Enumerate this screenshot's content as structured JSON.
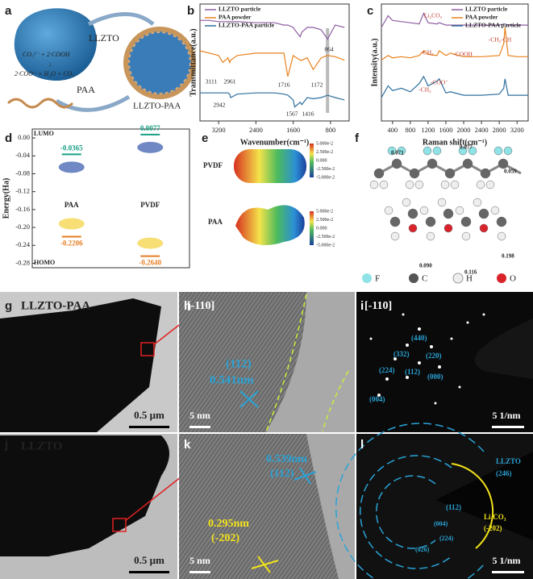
{
  "letters": [
    "a",
    "b",
    "c",
    "d",
    "e",
    "f",
    "g",
    "h",
    "i",
    "j",
    "k",
    "l"
  ],
  "panels": {
    "a": {
      "shell": "LLZTO",
      "polymer": "PAA",
      "product": "LLZTO-PAA",
      "reaction": [
        "CO₃²⁻ + 2·COOH",
        "↓",
        "2·COO⁻ + H₂O + CO₂"
      ]
    },
    "e": {
      "molecules": [
        "PVDF",
        "PAA"
      ],
      "colorbar": [
        "5.000e-2",
        "2.500e-2",
        "0.000",
        "-2.500e-2",
        "-5.000e-2"
      ]
    },
    "f": {
      "charges": [
        "0.071",
        "0.077",
        "0.059",
        "0.090",
        "0.116",
        "0.198"
      ],
      "atoms": [
        "F",
        "C",
        "H",
        "O"
      ]
    },
    "g": {
      "title": "LLZTO-PAA",
      "scale": "0.5 μm"
    },
    "h": {
      "zone": "[-110]",
      "plane": "(112)",
      "spacing": "0.541nm",
      "scale": "5 nm"
    },
    "i": {
      "zone": "[-110]",
      "spots": [
        "(440)",
        "(332)",
        "(220)",
        "(224)",
        "(112)",
        "(000)",
        "(004)"
      ],
      "scale": "5 1/nm"
    },
    "j": {
      "title": "LLZTO",
      "scale": "0.5 μm"
    },
    "k": {
      "spacing1": "0.539nm",
      "plane1": "(112)",
      "spacing2": "0.295nm",
      "plane2": "(-202)",
      "scale": "5 nm"
    },
    "l": {
      "ring1": "LLZTO",
      "plane1": "(246)",
      "plane2": "(112)",
      "ring2": "Li₂CO₃",
      "plane3": "(-202)",
      "inner": [
        "(004)",
        "(224)",
        "(026)"
      ],
      "scale": "5 1/nm"
    }
  },
  "chart_data": [
    {
      "type": "line",
      "x_label": "Wavenumber(cm⁻¹)",
      "y_label": "Transmittance(a.u.)",
      "legend": "upper left",
      "x": [
        3600,
        3400,
        3200,
        3111,
        3000,
        2961,
        2942,
        2800,
        2400,
        2000,
        1800,
        1716,
        1600,
        1567,
        1450,
        1416,
        1300,
        1172,
        1000,
        864,
        700,
        500
      ],
      "xlim": [
        3600,
        400
      ],
      "xticks": [
        3200,
        2400,
        1600,
        800
      ],
      "ylim": [
        0,
        100
      ],
      "series": [
        {
          "name": "LLZTO particle",
          "color": "#8e5ea2",
          "values": [
            86,
            86,
            85,
            85,
            85,
            85,
            85,
            85,
            84,
            84,
            82,
            82,
            80,
            78,
            72,
            76,
            80,
            80,
            78,
            70,
            82,
            80
          ]
        },
        {
          "name": "PAA powder",
          "color": "#e8821e",
          "values": [
            60,
            58,
            56,
            50,
            54,
            50,
            52,
            56,
            58,
            58,
            58,
            38,
            56,
            55,
            52,
            52,
            54,
            44,
            54,
            56,
            55,
            52
          ]
        },
        {
          "name": "LLZTO-PAA particle",
          "color": "#2e6f9e",
          "values": [
            24,
            24,
            24,
            24,
            24,
            23,
            20,
            23,
            24,
            24,
            23,
            22,
            18,
            12,
            16,
            14,
            20,
            19,
            20,
            22,
            20,
            18
          ]
        }
      ],
      "annotations": [
        "864",
        "3111",
        "2961",
        "1716",
        "1172",
        "2942",
        "1567",
        "1416"
      ]
    },
    {
      "type": "line",
      "x_label": "Raman shift(cm⁻¹)",
      "y_label": "Intensity(a.u.)",
      "legend": "upper right",
      "x": [
        150,
        300,
        400,
        600,
        800,
        1000,
        1100,
        1200,
        1400,
        1450,
        1600,
        1700,
        2000,
        2400,
        2800,
        2900,
        2930,
        3000,
        3200,
        3450
      ],
      "xlim": [
        150,
        3450
      ],
      "xticks": [
        400,
        800,
        1200,
        1600,
        2000,
        2400,
        2800,
        3200
      ],
      "ylim": [
        0,
        100
      ],
      "series": [
        {
          "name": "LLZTO particle",
          "color": "#8e5ea2",
          "values": [
            80,
            90,
            86,
            85,
            84,
            83,
            92,
            84,
            83,
            84,
            82,
            82,
            82,
            82,
            82,
            83,
            83,
            82,
            82,
            82
          ]
        },
        {
          "name": "PAA powder",
          "color": "#e8821e",
          "values": [
            52,
            56,
            54,
            55,
            54,
            56,
            60,
            57,
            56,
            60,
            56,
            58,
            55,
            55,
            56,
            66,
            80,
            56,
            55,
            55
          ]
        },
        {
          "name": "LLZTO-PAA particle",
          "color": "#2e6f9e",
          "values": [
            20,
            30,
            26,
            28,
            25,
            32,
            38,
            30,
            34,
            36,
            24,
            25,
            22,
            22,
            23,
            28,
            36,
            22,
            22,
            22
          ]
        }
      ],
      "annotations": [
        "Li₂CO₃",
        "-CH₂",
        "-COOH",
        "-CH₂-CH",
        "-CH₂",
        "-COO⁻"
      ]
    },
    {
      "type": "level",
      "y_label": "Energy(Ha)",
      "categories": [
        "PAA",
        "PVDF"
      ],
      "ylim": [
        0.02,
        -0.29
      ],
      "yticks": [
        {
          "value": 0,
          "label": "0.00"
        },
        -0.04,
        -0.08,
        -0.12,
        -0.16,
        {
          "value": -0.2,
          "label": "-0.20"
        },
        -0.24,
        -0.28
      ],
      "series": [
        {
          "name": "LUMO",
          "color": "#16a085",
          "values": [
            -0.0365,
            0.0077
          ],
          "value_labels": [
            "-0.0365",
            "0.0077"
          ]
        },
        {
          "name": "HOMO",
          "color": "#e67e22",
          "values": [
            -0.2206,
            -0.264
          ],
          "value_labels": [
            "-0.2206",
            "-0.2640"
          ]
        }
      ]
    }
  ]
}
